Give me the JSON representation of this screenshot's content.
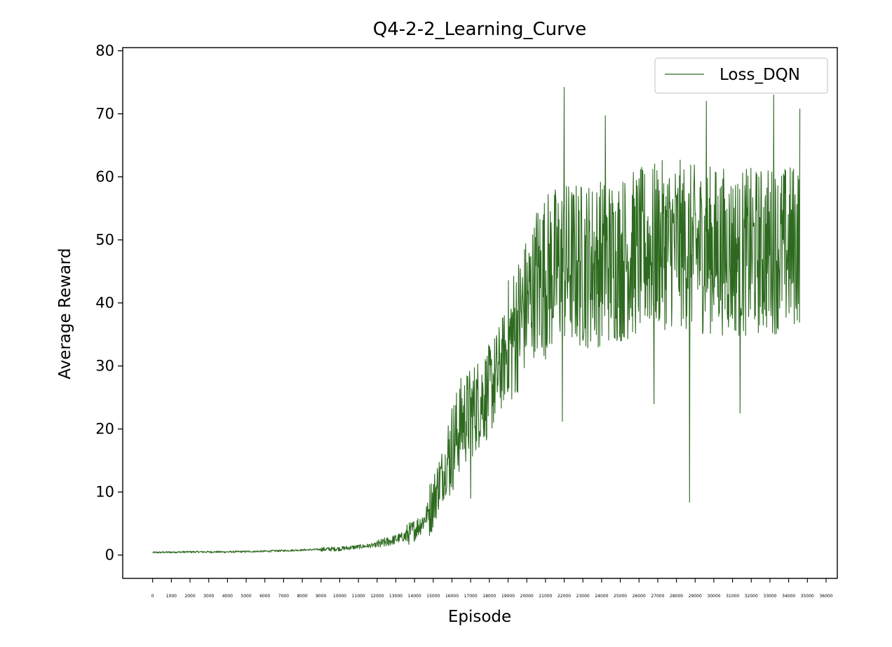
{
  "chart_data": {
    "type": "line",
    "title": "Q4-2-2_Learning_Curve",
    "xlabel": "Episode",
    "ylabel": "Average Reward",
    "xlim": [
      -1600,
      36600
    ],
    "ylim": [
      -3.7,
      80.5
    ],
    "x_ticks": [
      0,
      1000,
      2000,
      3000,
      4000,
      5000,
      6000,
      7000,
      8000,
      9000,
      10000,
      11000,
      12000,
      13000,
      14000,
      15000,
      16000,
      17000,
      18000,
      19000,
      20000,
      21000,
      22000,
      23000,
      24000,
      25000,
      26000,
      27000,
      28000,
      29000,
      30000,
      31000,
      32000,
      33000,
      34000,
      35000,
      36000
    ],
    "y_ticks": [
      0,
      10,
      20,
      30,
      40,
      50,
      60,
      70,
      80
    ],
    "grid": false,
    "legend_position": "top-right",
    "line_color": "#2d6a1f",
    "series": [
      {
        "name": "Loss_DQN",
        "x_step": 20,
        "keypoints": [
          [
            0,
            0.4
          ],
          [
            2000,
            0.5
          ],
          [
            4000,
            0.5
          ],
          [
            6000,
            0.6
          ],
          [
            8000,
            0.8
          ],
          [
            10000,
            1.0
          ],
          [
            11000,
            1.3
          ],
          [
            12000,
            1.6
          ],
          [
            13000,
            2.5
          ],
          [
            13500,
            3.0
          ],
          [
            14000,
            4.0
          ],
          [
            14500,
            5.5
          ],
          [
            15000,
            8.5
          ],
          [
            15300,
            11.5
          ],
          [
            15600,
            13.5
          ],
          [
            16000,
            17.0
          ],
          [
            16500,
            21.0
          ],
          [
            17000,
            22.5
          ],
          [
            17500,
            24.5
          ],
          [
            18000,
            26.0
          ],
          [
            18500,
            29.0
          ],
          [
            19000,
            33.0
          ],
          [
            19500,
            36.5
          ],
          [
            20000,
            40.0
          ],
          [
            20500,
            43.0
          ],
          [
            21000,
            44.5
          ],
          [
            22000,
            46.0
          ],
          [
            23000,
            46.0
          ],
          [
            24000,
            46.5
          ],
          [
            25000,
            47.0
          ],
          [
            26000,
            48.0
          ],
          [
            27000,
            49.0
          ],
          [
            28000,
            49.5
          ],
          [
            29000,
            48.5
          ],
          [
            30000,
            48.5
          ],
          [
            31000,
            48.0
          ],
          [
            32000,
            48.0
          ],
          [
            33000,
            48.5
          ],
          [
            34000,
            48.5
          ],
          [
            34600,
            50.0
          ]
        ],
        "spikes": [
          [
            22000,
            74.2
          ],
          [
            28700,
            8.4
          ],
          [
            24200,
            69.7
          ],
          [
            31400,
            22.5
          ],
          [
            17000,
            9.0
          ],
          [
            33200,
            73.0
          ],
          [
            21900,
            21.2
          ],
          [
            34600,
            70.8
          ],
          [
            26800,
            24.0
          ],
          [
            29600,
            72.0
          ]
        ]
      }
    ]
  }
}
